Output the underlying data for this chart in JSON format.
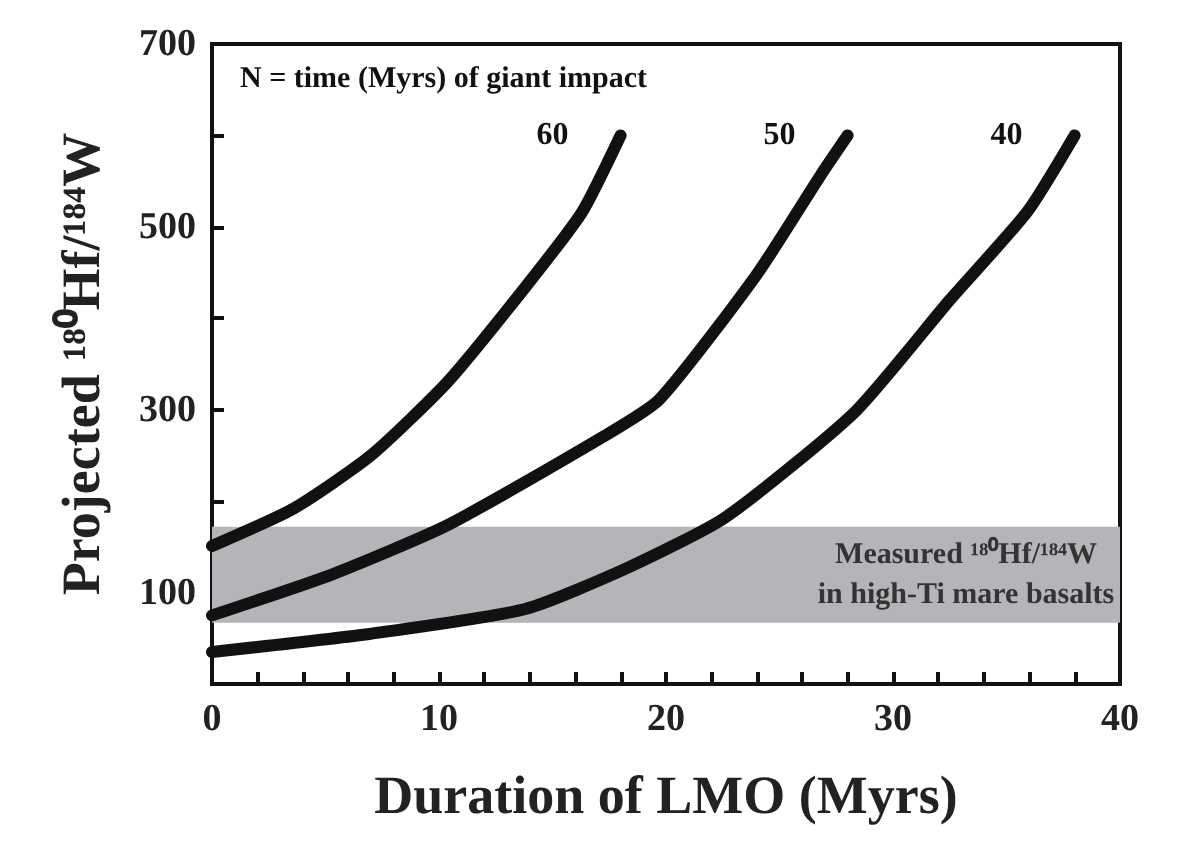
{
  "chart_data": {
    "type": "line",
    "xlabel": "Duration of LMO (Myrs)",
    "ylabel": "Projected ¹⁸⁰Hf/¹⁸⁴W",
    "xlim": [
      0,
      40
    ],
    "ylim": [
      0,
      700
    ],
    "xticks": [
      0,
      {
        "value": 2,
        "label": null
      },
      {
        "value": 4,
        "label": null
      },
      {
        "value": 6,
        "label": null
      },
      {
        "value": 8,
        "label": null
      },
      10,
      {
        "value": 12,
        "label": null
      },
      {
        "value": 14,
        "label": null
      },
      {
        "value": 16,
        "label": null
      },
      {
        "value": 18,
        "label": null
      },
      20,
      {
        "value": 22,
        "label": null
      },
      {
        "value": 24,
        "label": null
      },
      {
        "value": 26,
        "label": null
      },
      {
        "value": 28,
        "label": null
      },
      30,
      {
        "value": 32,
        "label": null
      },
      {
        "value": 34,
        "label": null
      },
      {
        "value": 36,
        "label": null
      },
      {
        "value": 38,
        "label": null
      },
      40
    ],
    "yticks": [
      {
        "value": 0,
        "label": null
      },
      100,
      {
        "value": 200,
        "label": null
      },
      300,
      {
        "value": 400,
        "label": null
      },
      500,
      {
        "value": 600,
        "label": null
      },
      700
    ],
    "grid": false,
    "marker": "none",
    "line_style": "solid",
    "series": [
      {
        "name": "60",
        "color": "#111111",
        "x": [
          0,
          3.6,
          7,
          10.4,
          13.8,
          16.3,
          18
        ],
        "values": [
          151,
          192,
          250,
          331,
          434,
          516,
          600
        ]
      },
      {
        "name": "50",
        "color": "#111111",
        "x": [
          0,
          5.3,
          10.4,
          17.2,
          19.7,
          24,
          26.8,
          28
        ],
        "values": [
          75,
          120,
          174,
          270,
          311,
          448,
          556,
          600
        ]
      },
      {
        "name": "40",
        "color": "#111111",
        "x": [
          0,
          7,
          13.8,
          18.3,
          22.6,
          28.3,
          32.5,
          35.9,
          38
        ],
        "values": [
          35,
          55,
          82,
          127,
          182,
          297,
          420,
          516,
          600
        ]
      }
    ],
    "bands": [
      {
        "axis": "y",
        "from": 67,
        "to": 172,
        "label": "Measured ¹⁸⁰Hf/¹⁸⁴W\nin high-Ti mare basalts",
        "color": "#b4b5b9"
      }
    ],
    "annotations": [
      "N = time (Myrs) of giant impact"
    ]
  }
}
